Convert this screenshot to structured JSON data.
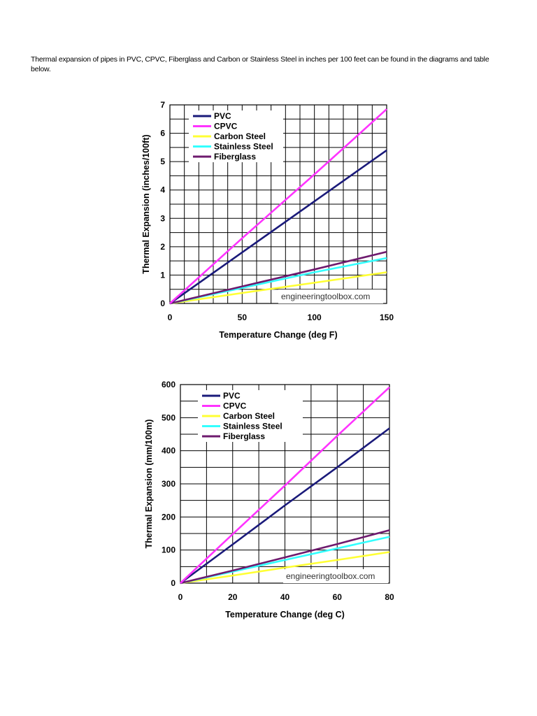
{
  "intro_text": "Thermal expansion of pipes in PVC, CPVC, Fiberglass and Carbon or Stainless Steel in inches per 100 feet can be found in the diagrams and table below.",
  "colors": {
    "PVC": "#1a1a7a",
    "CPVC": "#ff33ff",
    "Carbon Steel": "#ffff33",
    "Stainless Steel": "#33ffff",
    "Fiberglass": "#6e1a6e"
  },
  "chart_data": [
    {
      "type": "line",
      "xlabel": "Temperature Change (deg F)",
      "ylabel": "Thermal Expansion (inches/100ft)",
      "xlim": [
        0,
        150
      ],
      "ylim": [
        0,
        7
      ],
      "xticks": [
        0,
        50,
        100,
        150
      ],
      "yticks": [
        0,
        1,
        2,
        3,
        4,
        5,
        6,
        7
      ],
      "grid": true,
      "legend": "top-left",
      "watermark": "engineeringtoolbox.com",
      "x": [
        0,
        50,
        100,
        150
      ],
      "series": [
        {
          "name": "PVC",
          "values": [
            0,
            1.8,
            3.6,
            5.4
          ]
        },
        {
          "name": "CPVC",
          "values": [
            0,
            2.3,
            4.55,
            6.85
          ]
        },
        {
          "name": "Carbon Steel",
          "values": [
            0,
            0.37,
            0.73,
            1.1
          ]
        },
        {
          "name": "Stainless Steel",
          "values": [
            0,
            0.55,
            1.1,
            1.6
          ]
        },
        {
          "name": "Fiberglass",
          "values": [
            0,
            0.6,
            1.2,
            1.82
          ]
        }
      ]
    },
    {
      "type": "line",
      "xlabel": "Temperature Change (deg C)",
      "ylabel": "Thermal Expansion (mm/100m)",
      "xlim": [
        0,
        80
      ],
      "ylim": [
        0,
        600
      ],
      "xticks": [
        0,
        20,
        40,
        60,
        80
      ],
      "yticks": [
        0,
        100,
        200,
        300,
        400,
        500,
        600
      ],
      "grid": true,
      "legend": "top-left",
      "watermark": "engineeringtoolbox.com",
      "x": [
        0,
        20,
        40,
        60,
        80
      ],
      "series": [
        {
          "name": "PVC",
          "values": [
            0,
            117,
            235,
            350,
            468
          ]
        },
        {
          "name": "CPVC",
          "values": [
            0,
            148,
            295,
            445,
            592
          ]
        },
        {
          "name": "Carbon Steel",
          "values": [
            0,
            23,
            47,
            70,
            94
          ]
        },
        {
          "name": "Stainless Steel",
          "values": [
            0,
            35,
            70,
            105,
            140
          ]
        },
        {
          "name": "Fiberglass",
          "values": [
            0,
            38,
            78,
            118,
            160
          ]
        }
      ]
    }
  ]
}
